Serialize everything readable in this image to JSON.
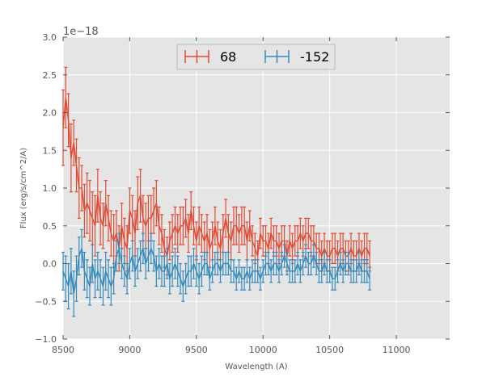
{
  "chart_data": {
    "type": "line",
    "xlabel": "Wavelength (A)",
    "ylabel": "Flux (erg/s/cm^2/A)",
    "offset_text": "1e−18",
    "xlim": [
      8500,
      11400
    ],
    "ylim": [
      -1.0,
      3.0
    ],
    "y_scale_exponent": -18,
    "xticks": [
      8500,
      9000,
      9500,
      10000,
      10500,
      11000
    ],
    "xtick_labels": [
      "8500",
      "9000",
      "9500",
      "10000",
      "10500",
      "11000"
    ],
    "yticks": [
      -1.0,
      -0.5,
      0.0,
      0.5,
      1.0,
      1.5,
      2.0,
      2.5,
      3.0
    ],
    "ytick_labels": [
      "−1.0",
      "−0.5",
      "0.0",
      "0.5",
      "1.0",
      "1.5",
      "2.0",
      "2.5",
      "3.0"
    ],
    "grid": true,
    "legend_location": "upper-center",
    "x_start": 8500,
    "x_step": 20,
    "series": [
      {
        "name": "68",
        "color": "#e24a33",
        "values": [
          1.8,
          2.2,
          1.9,
          1.4,
          1.6,
          1.3,
          1.0,
          1.0,
          0.7,
          0.8,
          0.7,
          0.6,
          0.5,
          0.9,
          0.6,
          0.5,
          0.8,
          0.6,
          0.4,
          0.3,
          0.4,
          0.2,
          0.5,
          0.3,
          0.2,
          0.7,
          0.6,
          0.4,
          0.8,
          0.9,
          0.6,
          0.5,
          0.6,
          0.6,
          0.7,
          0.8,
          0.5,
          0.4,
          0.2,
          0.1,
          0.3,
          0.4,
          0.5,
          0.4,
          0.5,
          0.5,
          0.6,
          0.4,
          0.7,
          0.5,
          0.3,
          0.5,
          0.4,
          0.3,
          0.4,
          0.2,
          0.3,
          0.5,
          0.3,
          0.2,
          0.4,
          0.6,
          0.4,
          0.3,
          0.5,
          0.5,
          0.4,
          0.5,
          0.5,
          0.3,
          0.5,
          0.3,
          0.2,
          0.1,
          0.4,
          0.3,
          0.3,
          0.2,
          0.4,
          0.3,
          0.3,
          0.2,
          0.3,
          0.3,
          0.1,
          0.3,
          0.2,
          0.3,
          0.3,
          0.4,
          0.3,
          0.4,
          0.4,
          0.3,
          0.3,
          0.2,
          0.2,
          0.1,
          0.2,
          0.1,
          0.1,
          0.2,
          0.2,
          0.1,
          0.2,
          0.2,
          0.1,
          0.1,
          0.2,
          0.1,
          0.1,
          0.2,
          0.1,
          0.2,
          0.2,
          0.1
        ],
        "errors": [
          0.5,
          0.4,
          0.35,
          0.45,
          0.3,
          0.35,
          0.4,
          0.3,
          0.35,
          0.4,
          0.4,
          0.35,
          0.4,
          0.35,
          0.35,
          0.3,
          0.3,
          0.3,
          0.3,
          0.35,
          0.3,
          0.3,
          0.3,
          0.3,
          0.3,
          0.3,
          0.3,
          0.3,
          0.35,
          0.35,
          0.3,
          0.3,
          0.3,
          0.3,
          0.3,
          0.3,
          0.25,
          0.25,
          0.25,
          0.25,
          0.25,
          0.25,
          0.25,
          0.25,
          0.25,
          0.25,
          0.25,
          0.25,
          0.25,
          0.25,
          0.25,
          0.25,
          0.25,
          0.25,
          0.25,
          0.25,
          0.25,
          0.25,
          0.25,
          0.25,
          0.25,
          0.25,
          0.25,
          0.25,
          0.25,
          0.25,
          0.25,
          0.25,
          0.25,
          0.25,
          0.2,
          0.2,
          0.2,
          0.2,
          0.2,
          0.2,
          0.2,
          0.2,
          0.2,
          0.2,
          0.2,
          0.2,
          0.2,
          0.2,
          0.2,
          0.2,
          0.2,
          0.2,
          0.2,
          0.2,
          0.2,
          0.2,
          0.2,
          0.2,
          0.2,
          0.2,
          0.2,
          0.2,
          0.2,
          0.2,
          0.2,
          0.2,
          0.2,
          0.2,
          0.2,
          0.2,
          0.2,
          0.2,
          0.2,
          0.2,
          0.2,
          0.2,
          0.2,
          0.2,
          0.2,
          0.2
        ]
      },
      {
        "name": "-152",
        "color": "#348abd",
        "values": [
          -0.1,
          -0.2,
          -0.3,
          -0.1,
          -0.4,
          -0.2,
          0.1,
          0.2,
          -0.1,
          -0.2,
          -0.3,
          0.0,
          -0.2,
          -0.1,
          -0.2,
          -0.3,
          -0.1,
          -0.2,
          -0.3,
          -0.2,
          0.1,
          0.2,
          0.0,
          -0.1,
          -0.2,
          0.0,
          0.1,
          -0.1,
          0.0,
          0.1,
          0.2,
          0.0,
          0.1,
          0.2,
          0.1,
          -0.1,
          0.0,
          -0.1,
          -0.1,
          0.0,
          -0.2,
          -0.1,
          0.0,
          -0.1,
          -0.2,
          -0.3,
          -0.2,
          -0.1,
          -0.1,
          0.0,
          -0.1,
          -0.2,
          -0.1,
          0.0,
          0.0,
          -0.2,
          -0.1,
          0.0,
          0.0,
          -0.1,
          0.0,
          0.0,
          0.0,
          -0.1,
          -0.1,
          -0.2,
          -0.1,
          -0.2,
          -0.2,
          -0.1,
          -0.2,
          -0.1,
          -0.1,
          -0.1,
          -0.2,
          -0.1,
          0.0,
          0.0,
          -0.1,
          0.0,
          0.0,
          -0.1,
          0.0,
          0.1,
          0.0,
          -0.1,
          -0.1,
          -0.1,
          0.0,
          -0.1,
          0.0,
          0.1,
          0.0,
          0.0,
          0.1,
          0.0,
          -0.1,
          -0.1,
          0.0,
          -0.1,
          -0.1,
          -0.2,
          -0.2,
          -0.1,
          0.0,
          -0.1,
          0.0,
          0.0,
          -0.1,
          -0.1,
          -0.1,
          0.0,
          -0.1,
          -0.1,
          -0.1,
          -0.2
        ],
        "errors": [
          0.25,
          0.3,
          0.3,
          0.3,
          0.3,
          0.3,
          0.25,
          0.25,
          0.25,
          0.25,
          0.25,
          0.25,
          0.25,
          0.25,
          0.25,
          0.25,
          0.25,
          0.25,
          0.25,
          0.2,
          0.2,
          0.2,
          0.2,
          0.2,
          0.2,
          0.2,
          0.2,
          0.2,
          0.2,
          0.2,
          0.2,
          0.2,
          0.2,
          0.2,
          0.2,
          0.2,
          0.2,
          0.2,
          0.2,
          0.2,
          0.2,
          0.2,
          0.2,
          0.2,
          0.2,
          0.2,
          0.2,
          0.2,
          0.2,
          0.2,
          0.2,
          0.2,
          0.2,
          0.15,
          0.15,
          0.15,
          0.15,
          0.15,
          0.15,
          0.15,
          0.15,
          0.15,
          0.15,
          0.15,
          0.15,
          0.15,
          0.15,
          0.15,
          0.15,
          0.15,
          0.15,
          0.15,
          0.15,
          0.15,
          0.15,
          0.15,
          0.15,
          0.15,
          0.15,
          0.15,
          0.15,
          0.15,
          0.15,
          0.15,
          0.15,
          0.15,
          0.15,
          0.15,
          0.15,
          0.15,
          0.15,
          0.15,
          0.15,
          0.15,
          0.15,
          0.15,
          0.15,
          0.15,
          0.15,
          0.15,
          0.15,
          0.15,
          0.15,
          0.15,
          0.15,
          0.15,
          0.15,
          0.15,
          0.15,
          0.15,
          0.15,
          0.15,
          0.15,
          0.15,
          0.15,
          0.15
        ]
      }
    ]
  }
}
